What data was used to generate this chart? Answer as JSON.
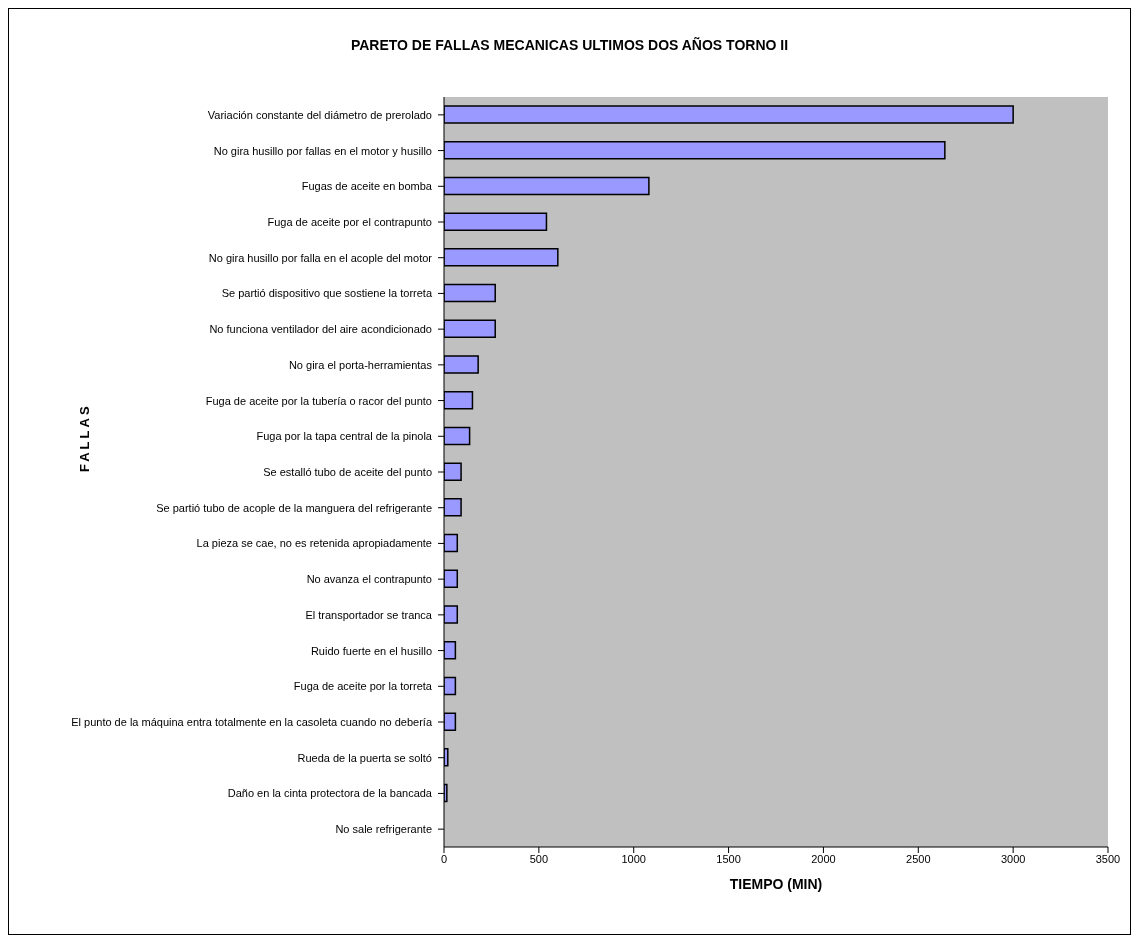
{
  "chart_data": {
    "type": "bar",
    "orientation": "horizontal",
    "title": "PARETO DE FALLAS MECANICAS ULTIMOS DOS AÑOS TORNO II",
    "xlabel": "TIEMPO (MIN)",
    "ylabel": "FALLAS",
    "categories": [
      "Variación constante del diámetro de prerolado",
      "No gira husillo por fallas en el motor y husillo",
      "Fugas de aceite en bomba",
      "Fuga de aceite por el contrapunto",
      "No gira husillo por falla en el acople del motor",
      "Se partió dispositivo que sostiene la torreta",
      "No funciona ventilador del aire acondicionado",
      "No gira el porta-herramientas",
      "Fuga de aceite por la tubería o racor del punto",
      "Fuga por la tapa central de la pinola",
      "Se estalló tubo de aceite del punto",
      "Se partió tubo de acople de la manguera del refrigerante",
      "La pieza se cae, no es retenida apropiadamente",
      "No avanza el contrapunto",
      "El transportador se tranca",
      "Ruido fuerte en el husillo",
      "Fuga de aceite por la torreta",
      "El punto de la máquina entra totalmente en la casoleta cuando no debería",
      "Rueda de la puerta se soltó",
      "Daño en la cinta protectora de la bancada",
      "No sale refrigerante"
    ],
    "values": [
      3000,
      2640,
      1080,
      540,
      600,
      270,
      270,
      180,
      150,
      135,
      90,
      90,
      70,
      70,
      70,
      60,
      60,
      60,
      20,
      15,
      0
    ],
    "color": "#9999ff",
    "xlim": [
      0,
      3500
    ],
    "xticks": [
      0,
      500,
      1000,
      1500,
      2000,
      2500,
      3000,
      3500
    ]
  }
}
